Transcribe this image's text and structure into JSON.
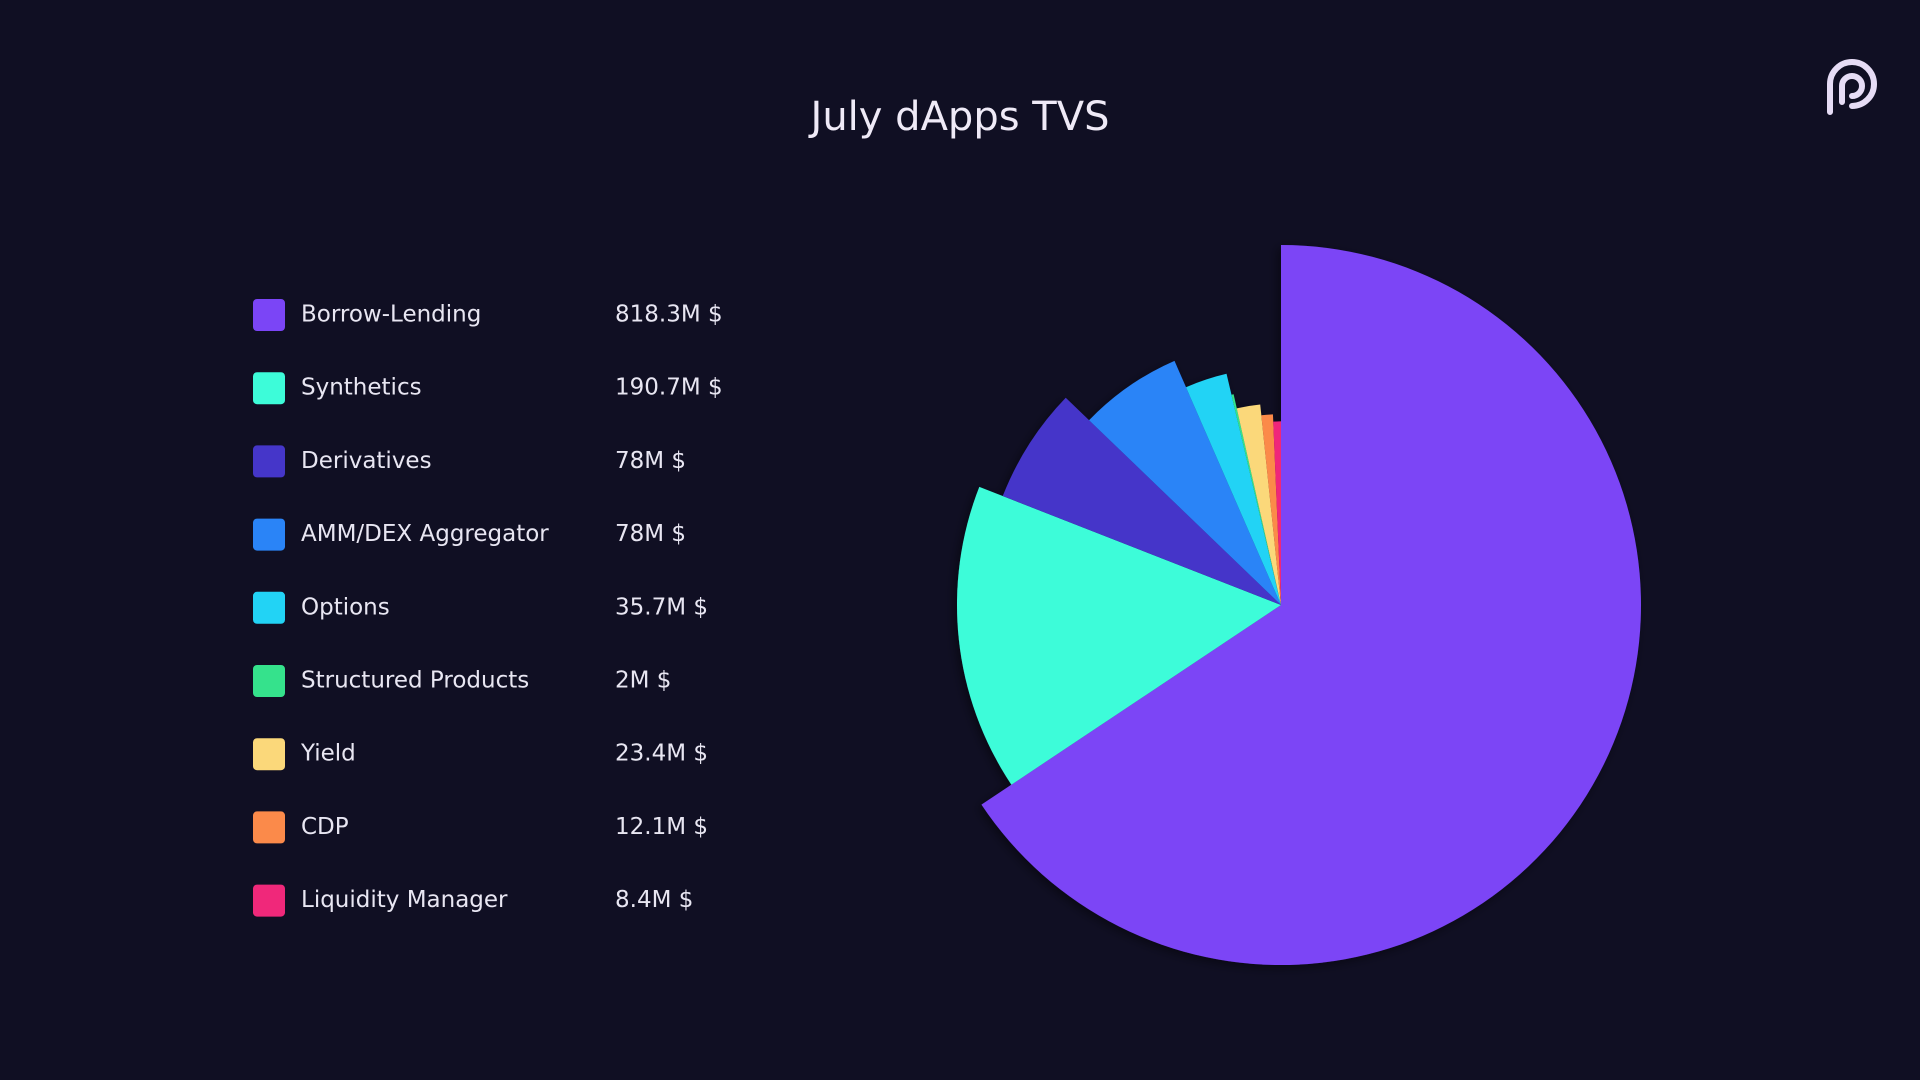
{
  "chart_data": {
    "type": "pie",
    "title": "July dApps TVS",
    "categories": [
      "Borrow-Lending",
      "Synthetics",
      "Derivatives",
      "AMM/DEX Aggregator",
      "Options",
      "Structured Products",
      "Yield",
      "CDP",
      "Liquidity Manager"
    ],
    "values": [
      818.3,
      190.7,
      78,
      78,
      35.7,
      2,
      23.4,
      12.1,
      8.4
    ],
    "value_labels": [
      "818.3M $",
      "190.7M $",
      "78M $",
      "78M $",
      "35.7M $",
      "2M $",
      "23.4M $",
      "12.1M $",
      "8.4M $"
    ],
    "colors": [
      "#7b45f6",
      "#3dfcd9",
      "#4536c9",
      "#2a84f7",
      "#22d3f5",
      "#35e28c",
      "#fbd87a",
      "#fb8a4a",
      "#f0287a"
    ]
  }
}
